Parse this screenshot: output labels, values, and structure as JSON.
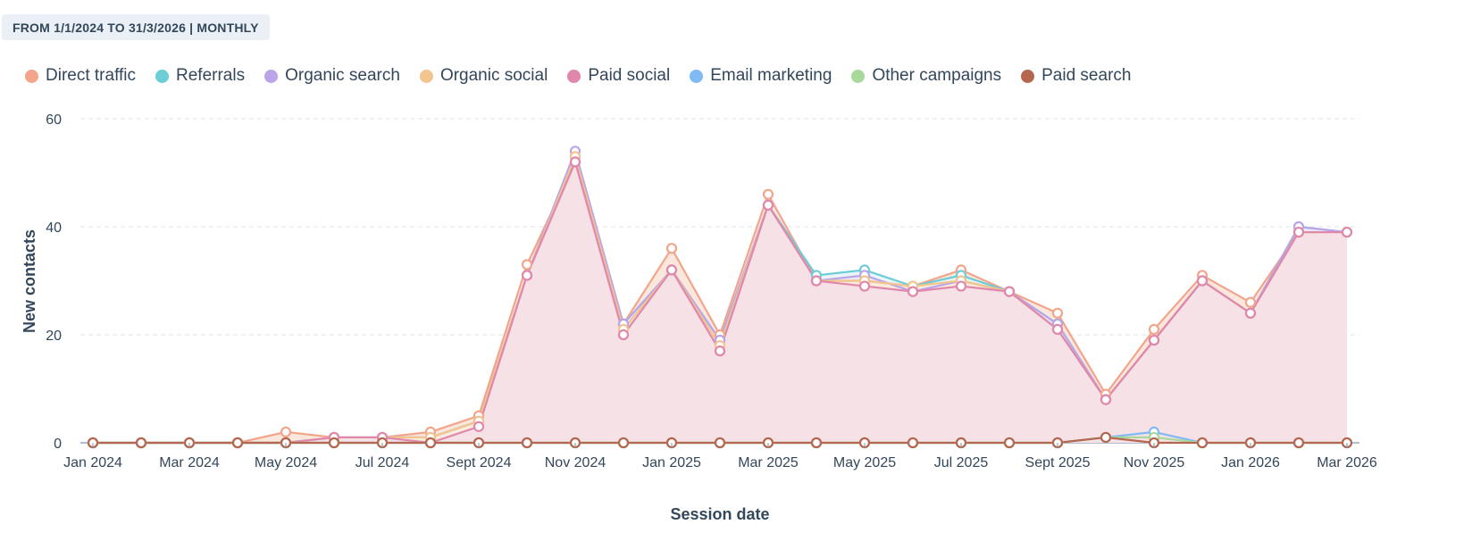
{
  "filter_badge": "FROM 1/1/2024 TO 31/3/2026 | MONTHLY",
  "chart_data": {
    "type": "area",
    "xlabel": "Session date",
    "ylabel": "New contacts",
    "ylim": [
      0,
      60
    ],
    "yticks": [
      0,
      20,
      40,
      60
    ],
    "grid": true,
    "legend_position": "top-left",
    "x": [
      "Jan 2024",
      "Feb 2024",
      "Mar 2024",
      "Apr 2024",
      "May 2024",
      "Jun 2024",
      "Jul 2024",
      "Aug 2024",
      "Sept 2024",
      "Oct 2024",
      "Nov 2024",
      "Dec 2024",
      "Jan 2025",
      "Feb 2025",
      "Mar 2025",
      "Apr 2025",
      "May 2025",
      "Jun 2025",
      "Jul 2025",
      "Aug 2025",
      "Sept 2025",
      "Oct 2025",
      "Nov 2025",
      "Dec 2025",
      "Jan 2026",
      "Feb 2026",
      "Mar 2026"
    ],
    "x_tick_labels": [
      "Jan 2024",
      "Mar 2024",
      "May 2024",
      "Jul 2024",
      "Sept 2024",
      "Nov 2024",
      "Jan 2025",
      "Mar 2025",
      "May 2025",
      "Jul 2025",
      "Sept 2025",
      "Nov 2025",
      "Jan 2026",
      "Mar 2026"
    ],
    "series": [
      {
        "name": "Direct traffic",
        "color": "#f2a58b",
        "fill": "#fbe3d7",
        "values": [
          0,
          0,
          0,
          0,
          2,
          1,
          1,
          2,
          5,
          33,
          52,
          22,
          36,
          20,
          46,
          30,
          30,
          29,
          32,
          28,
          24,
          9,
          21,
          31,
          26,
          39,
          39
        ]
      },
      {
        "name": "Referrals",
        "color": "#6ccdd6",
        "fill": "#e4f5f7",
        "values": [
          0,
          0,
          0,
          0,
          0,
          1,
          1,
          1,
          4,
          31,
          53,
          22,
          32,
          19,
          44,
          31,
          32,
          29,
          31,
          28,
          22,
          8,
          19,
          30,
          24,
          40,
          39
        ]
      },
      {
        "name": "Organic search",
        "color": "#b9a5e8",
        "fill": "#ece6f8",
        "values": [
          0,
          0,
          0,
          0,
          0,
          1,
          1,
          1,
          4,
          31,
          54,
          22,
          32,
          19,
          44,
          30,
          31,
          28,
          30,
          28,
          22,
          8,
          19,
          30,
          24,
          40,
          39
        ]
      },
      {
        "name": "Organic social",
        "color": "#f2c58f",
        "fill": "#fbecd8",
        "values": [
          0,
          0,
          0,
          0,
          0,
          1,
          1,
          1,
          4,
          31,
          53,
          21,
          32,
          18,
          44,
          30,
          30,
          29,
          30,
          28,
          21,
          8,
          19,
          30,
          24,
          39,
          39
        ]
      },
      {
        "name": "Paid social",
        "color": "#e087ab",
        "fill": "#f4dfe7",
        "values": [
          0,
          0,
          0,
          0,
          0,
          1,
          1,
          0,
          3,
          31,
          52,
          20,
          32,
          17,
          44,
          30,
          29,
          28,
          29,
          28,
          21,
          8,
          19,
          30,
          24,
          39,
          39
        ]
      },
      {
        "name": "Email marketing",
        "color": "#7fbaf5",
        "fill": "none",
        "values": [
          0,
          0,
          0,
          0,
          0,
          0,
          0,
          0,
          0,
          0,
          0,
          0,
          0,
          0,
          0,
          0,
          0,
          0,
          0,
          0,
          0,
          1,
          2,
          0,
          0,
          0,
          0
        ]
      },
      {
        "name": "Other campaigns",
        "color": "#a9d89b",
        "fill": "none",
        "values": [
          0,
          0,
          0,
          0,
          0,
          0,
          0,
          0,
          0,
          0,
          0,
          0,
          0,
          0,
          0,
          0,
          0,
          0,
          0,
          0,
          0,
          1,
          1,
          0,
          0,
          0,
          0
        ]
      },
      {
        "name": "Paid search",
        "color": "#b5664f",
        "fill": "none",
        "values": [
          0,
          0,
          0,
          0,
          0,
          0,
          0,
          0,
          0,
          0,
          0,
          0,
          0,
          0,
          0,
          0,
          0,
          0,
          0,
          0,
          0,
          1,
          0,
          0,
          0,
          0,
          0
        ]
      }
    ]
  }
}
